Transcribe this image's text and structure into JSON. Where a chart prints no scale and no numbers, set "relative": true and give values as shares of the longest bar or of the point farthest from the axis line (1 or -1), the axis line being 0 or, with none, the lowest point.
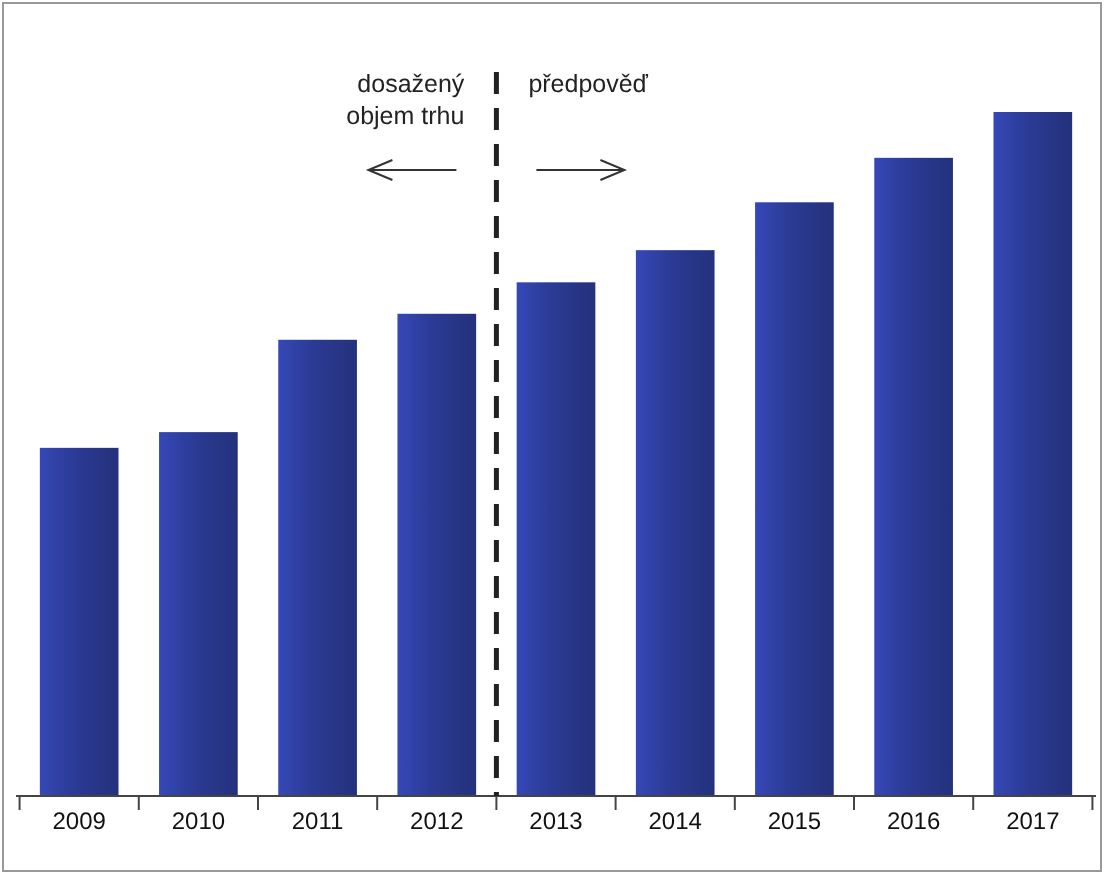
{
  "chart_data": {
    "type": "bar",
    "relative": true,
    "categories": [
      "2009",
      "2010",
      "2011",
      "2012",
      "2013",
      "2014",
      "2015",
      "2016",
      "2017"
    ],
    "values": [
      0.509,
      0.532,
      0.667,
      0.705,
      0.751,
      0.798,
      0.868,
      0.933,
      1
    ],
    "color": "#2b3a94",
    "annotations": [
      "dosažený\nobjem trhu",
      "předpověď"
    ]
  }
}
